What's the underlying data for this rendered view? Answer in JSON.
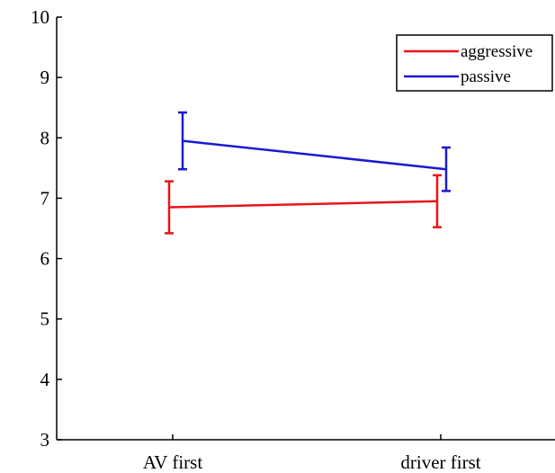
{
  "chart_data": {
    "type": "line",
    "categories": [
      "AV first",
      "driver first"
    ],
    "ylim": [
      3,
      10
    ],
    "yticks": [
      3,
      4,
      5,
      6,
      7,
      8,
      9,
      10
    ],
    "grid": false,
    "legend_position": "top-right",
    "title": "",
    "xlabel": "",
    "ylabel": "",
    "series": [
      {
        "name": "aggressive",
        "color": "#e8141a",
        "values": [
          6.85,
          6.95
        ],
        "err_low": [
          6.42,
          6.52
        ],
        "err_high": [
          7.28,
          7.38
        ]
      },
      {
        "name": "passive",
        "color": "#1a1ad2",
        "values": [
          7.95,
          7.48
        ],
        "err_low": [
          7.48,
          7.12
        ],
        "err_high": [
          8.42,
          7.84
        ]
      }
    ]
  }
}
